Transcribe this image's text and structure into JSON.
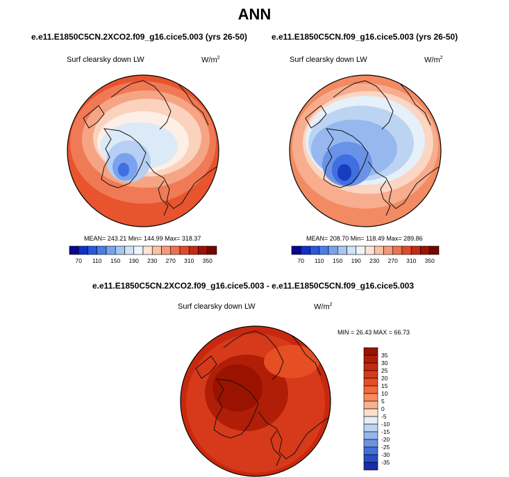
{
  "title": "ANN",
  "panels": [
    {
      "id": "p1",
      "case": "e.e11.E1850C5CN.2XCO2.f09_g16.cice5.003 (yrs 26-50)",
      "variable": "Surf clearsky down LW",
      "units": "W/m",
      "units_exp": "2",
      "stats": "MEAN= 243.21  Min= 144.99  Max= 318.37"
    },
    {
      "id": "p2",
      "case": "e.e11.E1850C5CN.f09_g16.cice5.003 (yrs 26-50)",
      "variable": "Surf clearsky down LW",
      "units": "W/m",
      "units_exp": "2",
      "stats": "MEAN= 208.70  Min= 118.49  Max= 289.86"
    },
    {
      "id": "diff",
      "case": "e.e11.E1850C5CN.2XCO2.f09_g16.cice5.003 - e.e11.E1850C5CN.f09_g16.cice5.003",
      "variable": "Surf clearsky down LW",
      "units": "W/m",
      "units_exp": "2",
      "stats": "MIN = 26.43 MAX =  66.73"
    }
  ],
  "chart_data": [
    {
      "type": "heatmap",
      "projection": "north polar stereographic",
      "title": "e.e11.E1850C5CN.2XCO2.f09_g16.cice5.003 (yrs 26-50)",
      "variable": "Surf clearsky down LW",
      "units": "W/m2",
      "mean": 243.21,
      "min": 144.99,
      "max": 318.37,
      "colorbar": {
        "orientation": "horizontal",
        "tick_labels": [
          "70",
          "110",
          "150",
          "190",
          "230",
          "270",
          "310",
          "350"
        ],
        "levels": [
          70,
          90,
          110,
          130,
          150,
          170,
          190,
          210,
          230,
          250,
          270,
          290,
          310,
          330,
          350
        ],
        "colors": [
          "#08088c",
          "#1030c8",
          "#2858e0",
          "#4a7de8",
          "#7aa2ee",
          "#a8c6f2",
          "#cfe2f8",
          "#eef4fb",
          "#fde4d6",
          "#f9c0a4",
          "#f59a78",
          "#ec7252",
          "#e04a2c",
          "#c62a14",
          "#9c1206",
          "#720800"
        ]
      },
      "field_description": "cool (~150-200) over Greenland and central Arctic; warm (~280-320) at lower latitudes"
    },
    {
      "type": "heatmap",
      "projection": "north polar stereographic",
      "title": "e.e11.E1850C5CN.f09_g16.cice5.003 (yrs 26-50)",
      "variable": "Surf clearsky down LW",
      "units": "W/m2",
      "mean": 208.7,
      "min": 118.49,
      "max": 289.86,
      "colorbar": {
        "orientation": "horizontal",
        "tick_labels": [
          "70",
          "110",
          "150",
          "190",
          "230",
          "270",
          "310",
          "350"
        ],
        "levels": [
          70,
          90,
          110,
          130,
          150,
          170,
          190,
          210,
          230,
          250,
          270,
          290,
          310,
          330,
          350
        ],
        "colors": [
          "#08088c",
          "#1030c8",
          "#2858e0",
          "#4a7de8",
          "#7aa2ee",
          "#a8c6f2",
          "#cfe2f8",
          "#eef4fb",
          "#fde4d6",
          "#f9c0a4",
          "#f59a78",
          "#ec7252",
          "#e04a2c",
          "#c62a14",
          "#9c1206",
          "#720800"
        ]
      },
      "field_description": "cold (~120-190) over Arctic and Greenland; warm (~250-290) at lower latitudes"
    },
    {
      "type": "heatmap",
      "projection": "north polar stereographic",
      "title": "e.e11.E1850C5CN.2XCO2.f09_g16.cice5.003 - e.e11.E1850C5CN.f09_g16.cice5.003",
      "variable": "Surf clearsky down LW",
      "units": "W/m2",
      "min": 26.43,
      "max": 66.73,
      "colorbar": {
        "orientation": "vertical",
        "tick_labels": [
          "35",
          "30",
          "25",
          "20",
          "15",
          "10",
          "5",
          "0",
          "-5",
          "-10",
          "-15",
          "-20",
          "-25",
          "-30",
          "-35"
        ],
        "levels": [
          35,
          30,
          25,
          20,
          15,
          10,
          5,
          0,
          -5,
          -10,
          -15,
          -20,
          -25,
          -30,
          -35
        ],
        "colors": [
          "#9a1200",
          "#b01e08",
          "#c42a10",
          "#d63a18",
          "#e64e24",
          "#f06a3a",
          "#f78c60",
          "#fbb090",
          "#fde0cc",
          "#e2eef8",
          "#bcd4f2",
          "#94b6ea",
          "#6a92e0",
          "#4470d4",
          "#2a4cc4",
          "#1a2ca6"
        ]
      },
      "field_description": "entire field positive; largest increases (>35) over the Arctic Ocean"
    }
  ]
}
